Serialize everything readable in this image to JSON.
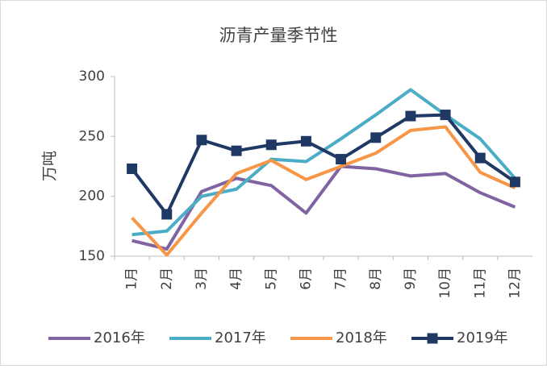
{
  "chart_data": {
    "type": "line",
    "title": "沥青产量季节性",
    "y_label": "万吨",
    "categories": [
      "1月",
      "2月",
      "3月",
      "4月",
      "5月",
      "6月",
      "7月",
      "8月",
      "9月",
      "10月",
      "11月",
      "12月"
    ],
    "ylim": [
      150,
      300
    ],
    "yticks": [
      150,
      200,
      250,
      300
    ],
    "grid": false,
    "legend": "bottom",
    "series": [
      {
        "name": "2016年",
        "color": "#8064a2",
        "marker": false,
        "values": [
          163,
          156,
          204,
          215,
          209,
          186,
          225,
          223,
          217,
          219,
          203,
          191
        ]
      },
      {
        "name": "2017年",
        "color": "#4bacc6",
        "marker": false,
        "values": [
          168,
          171,
          200,
          206,
          231,
          229,
          248,
          268,
          289,
          268,
          248,
          215
        ]
      },
      {
        "name": "2018年",
        "color": "#f79646",
        "marker": false,
        "values": [
          182,
          151,
          186,
          219,
          230,
          214,
          225,
          236,
          255,
          258,
          220,
          207
        ]
      },
      {
        "name": "2019年",
        "color": "#1f3864",
        "marker": true,
        "values": [
          223,
          185,
          247,
          238,
          243,
          246,
          231,
          249,
          267,
          268,
          232,
          212
        ]
      }
    ]
  }
}
